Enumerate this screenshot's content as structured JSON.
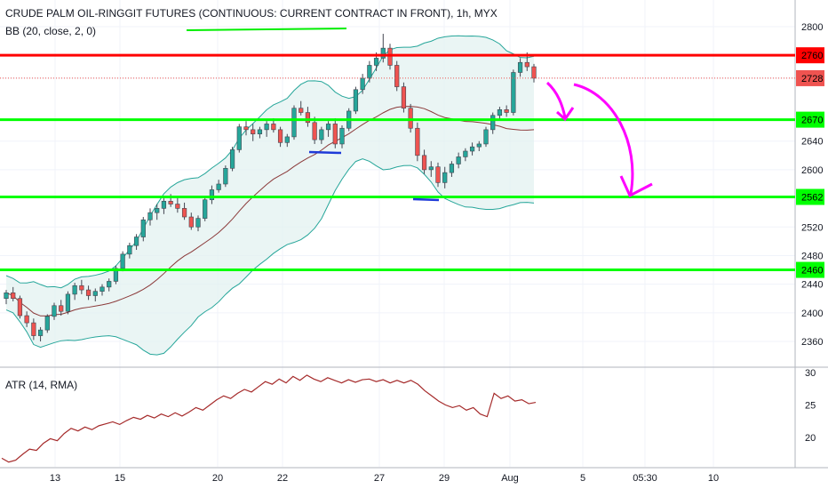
{
  "chart_data": {
    "type": "candlestick",
    "title": "CRUDE PALM OIL-RINGGIT FUTURES (CONTINUOUS: CURRENT CONTRACT IN FRONT), 1h, MYX",
    "indicator_label": "BB (20, close, 2, 0)",
    "atr_label": "ATR (14, RMA)",
    "price_axis_ticks": [
      "2800",
      "2760",
      "2728",
      "2670",
      "2640",
      "2600",
      "2562",
      "2520",
      "2480",
      "2460",
      "2440",
      "2400",
      "2360"
    ],
    "price_axis_tick_values": [
      2800,
      2760,
      2728,
      2670,
      2640,
      2600,
      2562,
      2520,
      2480,
      2460,
      2440,
      2400,
      2360
    ],
    "atr_axis_ticks": [
      "30",
      "25",
      "20"
    ],
    "atr_axis_tick_values": [
      30,
      25,
      20
    ],
    "date_axis_ticks": [
      "13",
      "15",
      "20",
      "22",
      "27",
      "29",
      "Aug",
      "5",
      "05:30",
      "10"
    ],
    "horizontal_levels": [
      {
        "value": 2760,
        "label": "2760",
        "color": "#ff0000"
      },
      {
        "value": 2670,
        "label": "2670",
        "color": "#00ff00"
      },
      {
        "value": 2562,
        "label": "2562",
        "color": "#00ff00"
      },
      {
        "value": 2460,
        "label": "2460",
        "color": "#00ff00"
      }
    ],
    "last_price": {
      "value": 2728,
      "label": "2728",
      "color": "#ef5350"
    },
    "candles": [
      [
        2420,
        2432,
        2412,
        2428
      ],
      [
        2428,
        2436,
        2416,
        2420
      ],
      [
        2420,
        2424,
        2392,
        2396
      ],
      [
        2396,
        2402,
        2380,
        2386
      ],
      [
        2386,
        2392,
        2362,
        2368
      ],
      [
        2368,
        2380,
        2360,
        2376
      ],
      [
        2376,
        2398,
        2372,
        2395
      ],
      [
        2395,
        2414,
        2390,
        2410
      ],
      [
        2410,
        2418,
        2396,
        2402
      ],
      [
        2402,
        2430,
        2398,
        2426
      ],
      [
        2426,
        2442,
        2418,
        2438
      ],
      [
        2438,
        2446,
        2426,
        2432
      ],
      [
        2432,
        2438,
        2418,
        2424
      ],
      [
        2424,
        2434,
        2416,
        2430
      ],
      [
        2430,
        2440,
        2424,
        2436
      ],
      [
        2436,
        2448,
        2430,
        2444
      ],
      [
        2444,
        2466,
        2440,
        2462
      ],
      [
        2462,
        2486,
        2458,
        2482
      ],
      [
        2482,
        2498,
        2476,
        2494
      ],
      [
        2494,
        2510,
        2488,
        2506
      ],
      [
        2506,
        2534,
        2500,
        2530
      ],
      [
        2530,
        2546,
        2522,
        2540
      ],
      [
        2540,
        2552,
        2530,
        2546
      ],
      [
        2546,
        2560,
        2538,
        2556
      ],
      [
        2556,
        2566,
        2548,
        2552
      ],
      [
        2552,
        2562,
        2540,
        2546
      ],
      [
        2546,
        2554,
        2530,
        2534
      ],
      [
        2534,
        2540,
        2516,
        2520
      ],
      [
        2520,
        2536,
        2514,
        2532
      ],
      [
        2532,
        2562,
        2528,
        2558
      ],
      [
        2558,
        2578,
        2552,
        2572
      ],
      [
        2572,
        2586,
        2568,
        2580
      ],
      [
        2580,
        2606,
        2576,
        2602
      ],
      [
        2602,
        2632,
        2598,
        2628
      ],
      [
        2628,
        2664,
        2624,
        2660
      ],
      [
        2660,
        2668,
        2648,
        2656
      ],
      [
        2656,
        2664,
        2640,
        2650
      ],
      [
        2650,
        2660,
        2644,
        2656
      ],
      [
        2656,
        2668,
        2646,
        2664
      ],
      [
        2664,
        2672,
        2652,
        2656
      ],
      [
        2656,
        2660,
        2632,
        2638
      ],
      [
        2638,
        2650,
        2632,
        2646
      ],
      [
        2646,
        2690,
        2642,
        2686
      ],
      [
        2686,
        2696,
        2676,
        2680
      ],
      [
        2680,
        2688,
        2660,
        2666
      ],
      [
        2666,
        2674,
        2636,
        2642
      ],
      [
        2642,
        2660,
        2636,
        2656
      ],
      [
        2656,
        2668,
        2646,
        2664
      ],
      [
        2664,
        2672,
        2630,
        2636
      ],
      [
        2636,
        2662,
        2630,
        2658
      ],
      [
        2658,
        2686,
        2654,
        2682
      ],
      [
        2682,
        2716,
        2678,
        2712
      ],
      [
        2712,
        2734,
        2706,
        2728
      ],
      [
        2728,
        2752,
        2722,
        2746
      ],
      [
        2746,
        2764,
        2738,
        2756
      ],
      [
        2756,
        2790,
        2750,
        2770
      ],
      [
        2770,
        2776,
        2740,
        2746
      ],
      [
        2746,
        2752,
        2710,
        2716
      ],
      [
        2716,
        2722,
        2680,
        2686
      ],
      [
        2686,
        2692,
        2652,
        2658
      ],
      [
        2658,
        2666,
        2612,
        2620
      ],
      [
        2620,
        2628,
        2594,
        2600
      ],
      [
        2600,
        2612,
        2590,
        2604
      ],
      [
        2604,
        2610,
        2576,
        2582
      ],
      [
        2582,
        2604,
        2574,
        2596
      ],
      [
        2596,
        2612,
        2590,
        2608
      ],
      [
        2608,
        2624,
        2602,
        2618
      ],
      [
        2618,
        2630,
        2612,
        2626
      ],
      [
        2626,
        2638,
        2620,
        2632
      ],
      [
        2632,
        2640,
        2626,
        2636
      ],
      [
        2636,
        2660,
        2632,
        2656
      ],
      [
        2656,
        2680,
        2650,
        2676
      ],
      [
        2676,
        2688,
        2670,
        2684
      ],
      [
        2684,
        2690,
        2674,
        2680
      ],
      [
        2680,
        2740,
        2676,
        2736
      ],
      [
        2736,
        2756,
        2730,
        2750
      ],
      [
        2750,
        2764,
        2738,
        2744
      ],
      [
        2744,
        2748,
        2722,
        2728
      ]
    ],
    "atr_values": [
      16.8,
      16.2,
      16.5,
      17.4,
      18.2,
      18.0,
      19.1,
      19.8,
      19.5,
      20.6,
      21.4,
      21.0,
      21.6,
      21.2,
      21.8,
      22.1,
      22.4,
      22.0,
      22.6,
      23.1,
      22.8,
      23.4,
      23.0,
      23.6,
      23.2,
      23.8,
      23.3,
      23.9,
      24.6,
      24.2,
      25.0,
      25.8,
      26.4,
      26.0,
      26.8,
      27.4,
      27.0,
      27.8,
      28.6,
      28.2,
      29.0,
      28.4,
      29.4,
      28.8,
      29.6,
      29.0,
      28.6,
      29.2,
      28.8,
      28.4,
      28.9,
      28.5,
      28.9,
      29.0,
      28.6,
      28.9,
      28.4,
      28.8,
      28.4,
      28.8,
      28.2,
      27.2,
      26.4,
      25.6,
      25.0,
      24.6,
      24.9,
      24.2,
      24.6,
      23.6,
      23.2,
      26.8,
      26.0,
      26.4,
      25.6,
      25.8,
      25.2,
      25.4
    ],
    "annotations": [
      "green underline under title",
      "blue lows marker lines",
      "magenta arrows pointing down"
    ]
  }
}
